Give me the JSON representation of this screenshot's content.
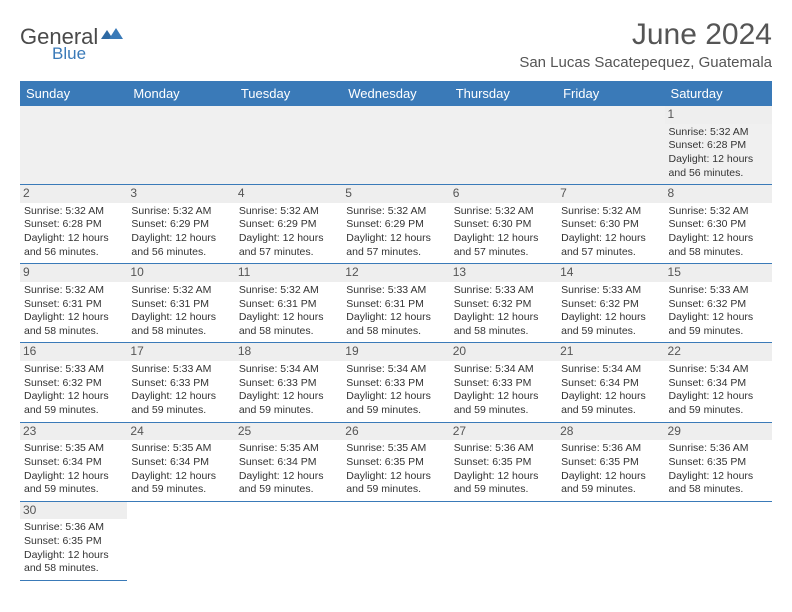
{
  "brand": {
    "part1": "General",
    "part2": "Blue"
  },
  "title": "June 2024",
  "location": "San Lucas Sacatepequez, Guatemala",
  "colors": {
    "header_bg": "#3a7ab8",
    "header_text": "#ffffff",
    "grid_line": "#3a7ab8",
    "daynum_bg": "#eeeeee",
    "text": "#333333",
    "title_text": "#555555"
  },
  "typography": {
    "title_fontsize": 30,
    "location_fontsize": 15,
    "header_fontsize": 13,
    "cell_fontsize": 10.5
  },
  "weekdays": [
    "Sunday",
    "Monday",
    "Tuesday",
    "Wednesday",
    "Thursday",
    "Friday",
    "Saturday"
  ],
  "weeks": [
    [
      null,
      null,
      null,
      null,
      null,
      null,
      {
        "n": "1",
        "rise": "5:32 AM",
        "set": "6:28 PM",
        "h": "12",
        "m": "56"
      }
    ],
    [
      {
        "n": "2",
        "rise": "5:32 AM",
        "set": "6:28 PM",
        "h": "12",
        "m": "56"
      },
      {
        "n": "3",
        "rise": "5:32 AM",
        "set": "6:29 PM",
        "h": "12",
        "m": "56"
      },
      {
        "n": "4",
        "rise": "5:32 AM",
        "set": "6:29 PM",
        "h": "12",
        "m": "57"
      },
      {
        "n": "5",
        "rise": "5:32 AM",
        "set": "6:29 PM",
        "h": "12",
        "m": "57"
      },
      {
        "n": "6",
        "rise": "5:32 AM",
        "set": "6:30 PM",
        "h": "12",
        "m": "57"
      },
      {
        "n": "7",
        "rise": "5:32 AM",
        "set": "6:30 PM",
        "h": "12",
        "m": "57"
      },
      {
        "n": "8",
        "rise": "5:32 AM",
        "set": "6:30 PM",
        "h": "12",
        "m": "58"
      }
    ],
    [
      {
        "n": "9",
        "rise": "5:32 AM",
        "set": "6:31 PM",
        "h": "12",
        "m": "58"
      },
      {
        "n": "10",
        "rise": "5:32 AM",
        "set": "6:31 PM",
        "h": "12",
        "m": "58"
      },
      {
        "n": "11",
        "rise": "5:32 AM",
        "set": "6:31 PM",
        "h": "12",
        "m": "58"
      },
      {
        "n": "12",
        "rise": "5:33 AM",
        "set": "6:31 PM",
        "h": "12",
        "m": "58"
      },
      {
        "n": "13",
        "rise": "5:33 AM",
        "set": "6:32 PM",
        "h": "12",
        "m": "58"
      },
      {
        "n": "14",
        "rise": "5:33 AM",
        "set": "6:32 PM",
        "h": "12",
        "m": "59"
      },
      {
        "n": "15",
        "rise": "5:33 AM",
        "set": "6:32 PM",
        "h": "12",
        "m": "59"
      }
    ],
    [
      {
        "n": "16",
        "rise": "5:33 AM",
        "set": "6:32 PM",
        "h": "12",
        "m": "59"
      },
      {
        "n": "17",
        "rise": "5:33 AM",
        "set": "6:33 PM",
        "h": "12",
        "m": "59"
      },
      {
        "n": "18",
        "rise": "5:34 AM",
        "set": "6:33 PM",
        "h": "12",
        "m": "59"
      },
      {
        "n": "19",
        "rise": "5:34 AM",
        "set": "6:33 PM",
        "h": "12",
        "m": "59"
      },
      {
        "n": "20",
        "rise": "5:34 AM",
        "set": "6:33 PM",
        "h": "12",
        "m": "59"
      },
      {
        "n": "21",
        "rise": "5:34 AM",
        "set": "6:34 PM",
        "h": "12",
        "m": "59"
      },
      {
        "n": "22",
        "rise": "5:34 AM",
        "set": "6:34 PM",
        "h": "12",
        "m": "59"
      }
    ],
    [
      {
        "n": "23",
        "rise": "5:35 AM",
        "set": "6:34 PM",
        "h": "12",
        "m": "59"
      },
      {
        "n": "24",
        "rise": "5:35 AM",
        "set": "6:34 PM",
        "h": "12",
        "m": "59"
      },
      {
        "n": "25",
        "rise": "5:35 AM",
        "set": "6:34 PM",
        "h": "12",
        "m": "59"
      },
      {
        "n": "26",
        "rise": "5:35 AM",
        "set": "6:35 PM",
        "h": "12",
        "m": "59"
      },
      {
        "n": "27",
        "rise": "5:36 AM",
        "set": "6:35 PM",
        "h": "12",
        "m": "59"
      },
      {
        "n": "28",
        "rise": "5:36 AM",
        "set": "6:35 PM",
        "h": "12",
        "m": "59"
      },
      {
        "n": "29",
        "rise": "5:36 AM",
        "set": "6:35 PM",
        "h": "12",
        "m": "58"
      }
    ],
    [
      {
        "n": "30",
        "rise": "5:36 AM",
        "set": "6:35 PM",
        "h": "12",
        "m": "58"
      },
      null,
      null,
      null,
      null,
      null,
      null
    ]
  ],
  "labels": {
    "sunrise": "Sunrise:",
    "sunset": "Sunset:",
    "daylight_prefix": "Daylight:",
    "hours_word": "hours",
    "and_word": "and",
    "minutes_word": "minutes."
  }
}
